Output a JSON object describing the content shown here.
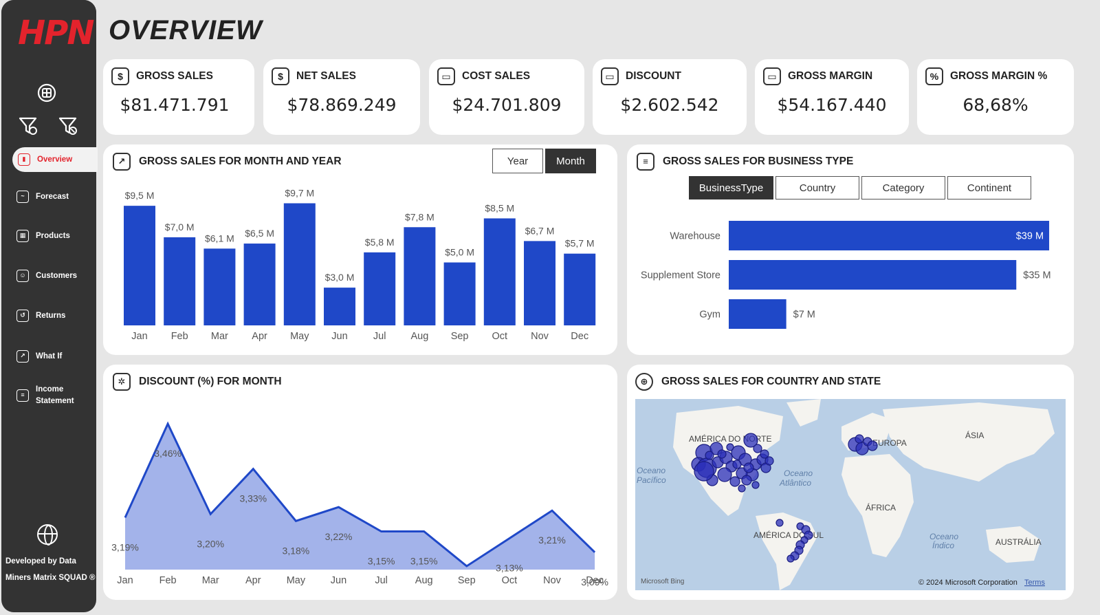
{
  "brand": {
    "logo": "HPN",
    "accent": "#e3232c",
    "sidebar_bg": "#333333",
    "bar_color": "#1f48c8"
  },
  "page_title": "OVERVIEW",
  "sidebar": {
    "items": [
      {
        "label": "Overview",
        "icon": "overview-icon",
        "active": true
      },
      {
        "label": "Forecast",
        "icon": "forecast-icon"
      },
      {
        "label": "Products",
        "icon": "products-icon"
      },
      {
        "label": "Customers",
        "icon": "customers-icon"
      },
      {
        "label": "Returns",
        "icon": "returns-icon"
      },
      {
        "label": "What If",
        "icon": "what-if-icon"
      },
      {
        "label": "Income Statement",
        "icon": "income-statement-icon"
      }
    ],
    "footer_line1": "Developed by Data",
    "footer_line2": "Miners Matrix SQUAD ®"
  },
  "kpis": [
    {
      "label": "GROSS SALES",
      "value": "$81.471.791",
      "icon": "dollar-icon"
    },
    {
      "label": "NET SALES",
      "value": "$78.869.249",
      "icon": "dollar-icon"
    },
    {
      "label": "COST SALES",
      "value": "$24.701.809",
      "icon": "card-icon"
    },
    {
      "label": "DISCOUNT",
      "value": "$2.602.542",
      "icon": "card-icon"
    },
    {
      "label": "GROSS MARGIN",
      "value": "$54.167.440",
      "icon": "card-icon"
    },
    {
      "label": "GROSS MARGIN %",
      "value": "68,68%",
      "icon": "percent-icon"
    }
  ],
  "monthly_panel": {
    "title": "GROSS SALES FOR MONTH AND YEAR",
    "toggle": [
      {
        "label": "Year",
        "active": false
      },
      {
        "label": "Month",
        "active": true
      }
    ]
  },
  "business_panel": {
    "title": "GROSS SALES FOR BUSINESS TYPE",
    "tabs": [
      {
        "label": "BusinessType",
        "active": true
      },
      {
        "label": "Country",
        "active": false
      },
      {
        "label": "Category",
        "active": false
      },
      {
        "label": "Continent",
        "active": false
      }
    ]
  },
  "discount_panel": {
    "title": "DISCOUNT (%) FOR MONTH"
  },
  "map_panel": {
    "title": "GROSS SALES FOR COUNTRY AND STATE",
    "labels": {
      "north_america": "AMÉRICA DO NORTE",
      "south_america": "AMÉRICA DO SUL",
      "europe": "EUROPA",
      "asia": "ÁSIA",
      "africa": "ÁFRICA",
      "australia": "AUSTRÁLIA",
      "pacific_1": "Oceano",
      "pacific_2": "Pacífico",
      "atlantic_1": "Oceano",
      "atlantic_2": "Atlântico",
      "indian_1": "Oceano",
      "indian_2": "Índico"
    },
    "bing": "Microsoft Bing",
    "copyright": "© 2024 Microsoft Corporation",
    "terms": "Terms"
  },
  "chart_data": [
    {
      "type": "bar",
      "title": "GROSS SALES FOR MONTH AND YEAR",
      "categories": [
        "Jan",
        "Feb",
        "Mar",
        "Apr",
        "May",
        "Jun",
        "Jul",
        "Aug",
        "Sep",
        "Oct",
        "Nov",
        "Dec"
      ],
      "values": [
        9.5,
        7.0,
        6.1,
        6.5,
        9.7,
        3.0,
        5.8,
        7.8,
        5.0,
        8.5,
        6.7,
        5.7
      ],
      "data_labels": [
        "$9,5 M",
        "$7,0 M",
        "$6,1 M",
        "$6,5 M",
        "$9,7 M",
        "$3,0 M",
        "$5,8 M",
        "$7,8 M",
        "$5,0 M",
        "$8,5 M",
        "$6,7 M",
        "$5,7 M"
      ],
      "ylim": [
        0,
        10
      ],
      "grid": false
    },
    {
      "type": "bar",
      "orientation": "horizontal",
      "title": "GROSS SALES FOR BUSINESS TYPE",
      "categories": [
        "Warehouse",
        "Supplement Store",
        "Gym"
      ],
      "values": [
        39,
        35,
        7
      ],
      "data_labels": [
        "$39 M",
        "$35 M",
        "$7 M"
      ],
      "xlim": [
        0,
        40
      ]
    },
    {
      "type": "area",
      "title": "DISCOUNT (%) FOR MONTH",
      "categories": [
        "Jan",
        "Feb",
        "Mar",
        "Apr",
        "May",
        "Jun",
        "Jul",
        "Aug",
        "Sep",
        "Oct",
        "Nov",
        "Dec"
      ],
      "values": [
        3.19,
        3.46,
        3.2,
        3.33,
        3.18,
        3.22,
        3.15,
        3.15,
        3.05,
        3.13,
        3.21,
        3.09
      ],
      "data_labels": [
        "3,19%",
        "3,46%",
        "3,20%",
        "3,33%",
        "3,18%",
        "3,22%",
        "3,15%",
        "3,15%",
        "",
        "3,13%",
        "3,21%",
        "3,09%"
      ],
      "ylim": [
        3.04,
        3.48
      ]
    }
  ]
}
